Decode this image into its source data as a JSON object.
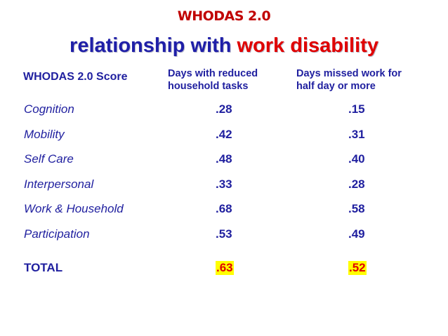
{
  "title": "WHODAS 2.0",
  "subtitle": {
    "lead": "relationship with ",
    "accent": "work disability"
  },
  "headers": {
    "score": "WHODAS 2.0 Score",
    "reduced_line1": "Days with reduced",
    "reduced_line2": "household tasks",
    "missed_line1": "Days missed work for",
    "missed_line2": "half day or more"
  },
  "rows": [
    {
      "label": "Cognition",
      "reduced": ".28",
      "missed": ".15"
    },
    {
      "label": "Mobility",
      "reduced": ".42",
      "missed": ".31"
    },
    {
      "label": "Self Care",
      "reduced": ".48",
      "missed": ".40"
    },
    {
      "label": "Interpersonal",
      "reduced": ".33",
      "missed": ".28"
    },
    {
      "label": "Work & Household",
      "reduced": ".68",
      "missed": ".58"
    },
    {
      "label": "Participation",
      "reduced": ".53",
      "missed": ".49"
    }
  ],
  "total": {
    "label": "TOTAL",
    "reduced": ".63",
    "missed": ".52"
  },
  "colors": {
    "title": "#c00000",
    "text": "#1f1f9f",
    "accent": "#e00000",
    "highlight": "#ffff00"
  }
}
